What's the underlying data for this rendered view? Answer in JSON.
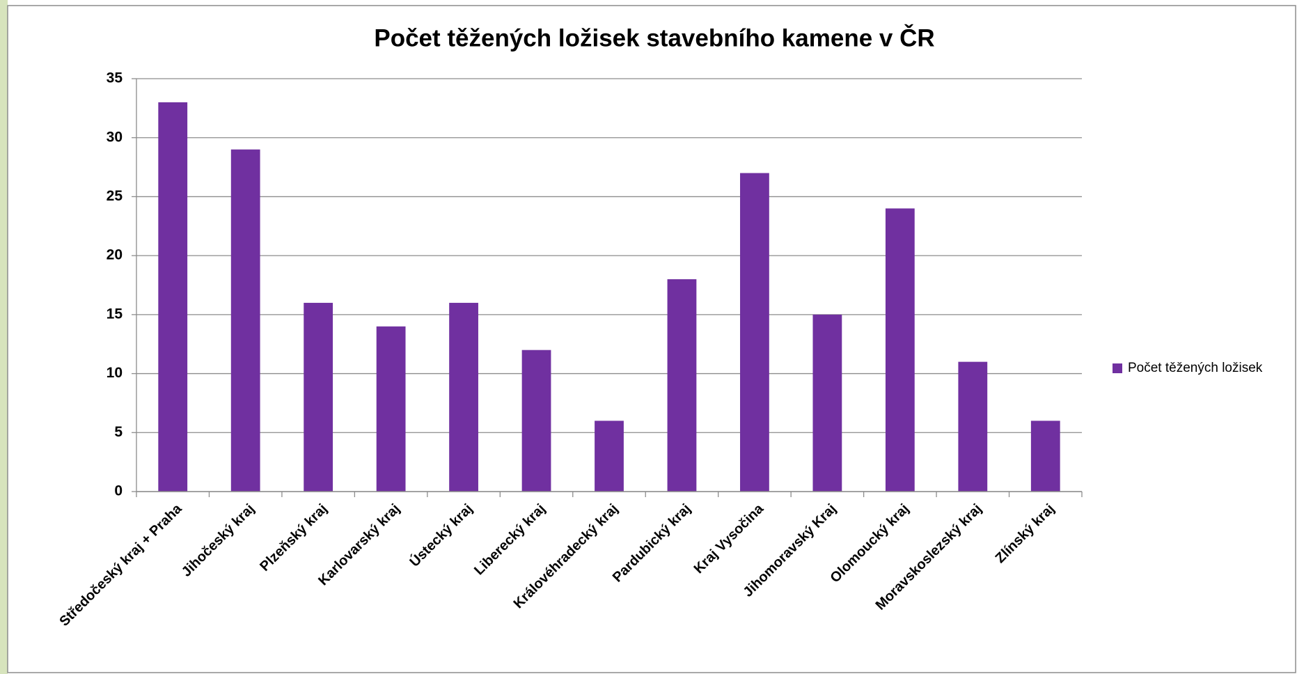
{
  "chart_data": {
    "type": "bar",
    "title": "Počet těžených ložisek stavebního kamene v ČR",
    "categories": [
      "Středočeský kraj + Praha",
      "Jihočeský kraj",
      "Plzeňský kraj",
      "Karlovarský kraj",
      "Ústecký kraj",
      "Liberecký kraj",
      "Královéhradecký kraj",
      "Pardubický kraj",
      "Kraj Vysočina",
      "Jihomoravský Kraj",
      "Olomoucký kraj",
      "Moravskoslezský kraj",
      "Zlínský kraj"
    ],
    "series": [
      {
        "name": "Počet těžených ložisek",
        "color": "#7030a0",
        "values": [
          33,
          29,
          16,
          14,
          16,
          12,
          6,
          18,
          27,
          15,
          24,
          11,
          6
        ]
      }
    ],
    "ylim": [
      0,
      35
    ],
    "yticks": [
      0,
      5,
      10,
      15,
      20,
      25,
      30,
      35
    ],
    "grid": true,
    "legend": "right"
  }
}
